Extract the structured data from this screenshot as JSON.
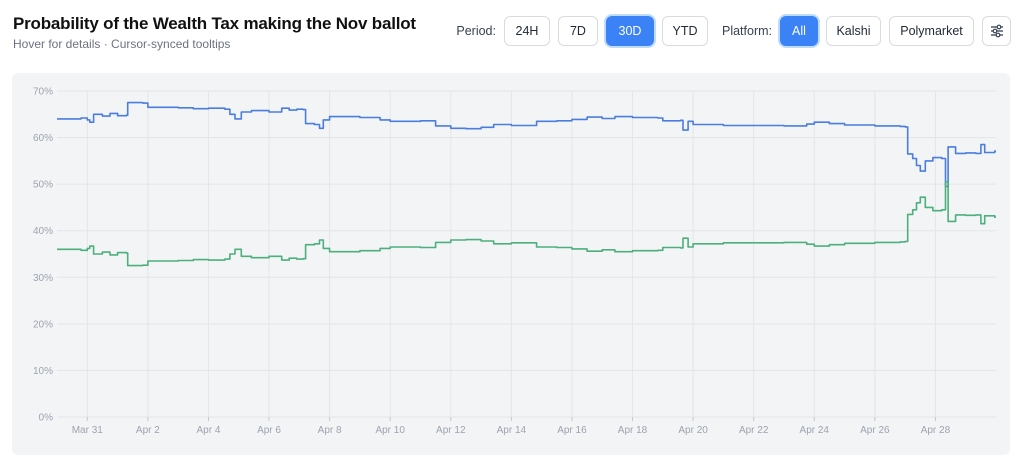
{
  "header": {
    "title": "Probability of the Wealth Tax making the Nov ballot",
    "subtitle": "Hover for details · Cursor-synced tooltips"
  },
  "controls": {
    "period_label": "Period:",
    "periods": [
      "24H",
      "7D",
      "30D",
      "YTD"
    ],
    "active_period": "30D",
    "platform_label": "Platform:",
    "platforms": [
      "All",
      "Kalshi",
      "Polymarket"
    ],
    "active_platform": "All",
    "settings_icon": "sliders-icon"
  },
  "colors": {
    "accent": "#3b82f6",
    "series_yes": "#4a7de0",
    "series_no": "#4caf7d"
  },
  "chart_data": {
    "type": "line",
    "title": "",
    "xlabel": "",
    "ylabel": "",
    "ylim": [
      0,
      70
    ],
    "yticks": [
      "0%",
      "10%",
      "20%",
      "30%",
      "40%",
      "50%",
      "60%",
      "70%"
    ],
    "xlim": [
      "Mar 30",
      "Apr 29"
    ],
    "xticks": [
      {
        "date": "Mar 31",
        "label": "Mar 31"
      },
      {
        "date": "Apr 2",
        "label": "Apr 2"
      },
      {
        "date": "Apr 4",
        "label": "Apr 4"
      },
      {
        "date": "Apr 6",
        "label": "Apr 6"
      },
      {
        "date": "Apr 8",
        "label": "Apr 8"
      },
      {
        "date": "Apr 10",
        "label": "Apr 10"
      },
      {
        "date": "Apr 12",
        "label": "Apr 12"
      },
      {
        "date": "Apr 14",
        "label": "Apr 14"
      },
      {
        "date": "Apr 16",
        "label": "Apr 16"
      },
      {
        "date": "Apr 18",
        "label": "Apr 18"
      },
      {
        "date": "Apr 20",
        "label": "Apr 20"
      },
      {
        "date": "Apr 22",
        "label": "Apr 22"
      },
      {
        "date": "Apr 24",
        "label": "Apr 24"
      },
      {
        "date": "Apr 26",
        "label": "Apr 26"
      },
      {
        "date": "Apr 28",
        "label": "Apr 28"
      }
    ],
    "grid": true,
    "legend": "none",
    "series": [
      {
        "color": "#4a7de0",
        "points": [
          [
            "Mar 30 00:00",
            64.0
          ],
          [
            "Mar 30 19:00",
            64.2
          ],
          [
            "Mar 31 00:00",
            63.8
          ],
          [
            "Mar 31 02:00",
            63.3
          ],
          [
            "Mar 31 05:00",
            65.0
          ],
          [
            "Mar 31 12:00",
            64.6
          ],
          [
            "Mar 31 18:00",
            65.2
          ],
          [
            "Apr 1 00:00",
            64.7
          ],
          [
            "Apr 1 07:00",
            64.8
          ],
          [
            "Apr 1 08:00",
            67.5
          ],
          [
            "Apr 1 20:00",
            67.4
          ],
          [
            "Apr 2 00:00",
            66.5
          ],
          [
            "Apr 3 00:00",
            66.4
          ],
          [
            "Apr 3 12:00",
            66.2
          ],
          [
            "Apr 4 00:00",
            66.3
          ],
          [
            "Apr 4 13:00",
            66.1
          ],
          [
            "Apr 4 17:00",
            65.0
          ],
          [
            "Apr 4 21:00",
            64.0
          ],
          [
            "Apr 5 02:00",
            65.5
          ],
          [
            "Apr 5 10:00",
            65.8
          ],
          [
            "Apr 6 00:00",
            65.5
          ],
          [
            "Apr 6 10:00",
            66.3
          ],
          [
            "Apr 6 16:00",
            65.9
          ],
          [
            "Apr 6 22:00",
            66.1
          ],
          [
            "Apr 7 03:00",
            66.0
          ],
          [
            "Apr 7 05:00",
            63.0
          ],
          [
            "Apr 7 12:00",
            62.8
          ],
          [
            "Apr 7 16:00",
            62.0
          ],
          [
            "Apr 7 19:00",
            63.8
          ],
          [
            "Apr 8 00:00",
            64.5
          ],
          [
            "Apr 9 00:00",
            64.3
          ],
          [
            "Apr 9 16:00",
            63.8
          ],
          [
            "Apr 10 00:00",
            63.5
          ],
          [
            "Apr 11 00:00",
            63.6
          ],
          [
            "Apr 11 12:00",
            62.5
          ],
          [
            "Apr 12 00:00",
            62.0
          ],
          [
            "Apr 12 12:00",
            61.9
          ],
          [
            "Apr 13 00:00",
            62.2
          ],
          [
            "Apr 13 10:00",
            62.8
          ],
          [
            "Apr 14 00:00",
            62.6
          ],
          [
            "Apr 14 20:00",
            63.5
          ],
          [
            "Apr 15 12:00",
            63.6
          ],
          [
            "Apr 16 00:00",
            63.9
          ],
          [
            "Apr 16 12:00",
            64.4
          ],
          [
            "Apr 17 00:00",
            64.1
          ],
          [
            "Apr 17 10:00",
            64.5
          ],
          [
            "Apr 18 00:00",
            64.3
          ],
          [
            "Apr 18 20:00",
            64.2
          ],
          [
            "Apr 19 00:00",
            63.6
          ],
          [
            "Apr 19 14:00",
            63.7
          ],
          [
            "Apr 19 16:00",
            61.6
          ],
          [
            "Apr 19 20:00",
            63.5
          ],
          [
            "Apr 20 00:00",
            62.8
          ],
          [
            "Apr 21 00:00",
            62.6
          ],
          [
            "Apr 22 00:00",
            62.6
          ],
          [
            "Apr 23 00:00",
            62.5
          ],
          [
            "Apr 23 18:00",
            62.9
          ],
          [
            "Apr 24 00:00",
            63.3
          ],
          [
            "Apr 24 12:00",
            63.0
          ],
          [
            "Apr 25 00:00",
            62.7
          ],
          [
            "Apr 26 00:00",
            62.5
          ],
          [
            "Apr 26 20:00",
            62.4
          ],
          [
            "Apr 27 00:00",
            62.3
          ],
          [
            "Apr 27 02:00",
            56.5
          ],
          [
            "Apr 27 06:00",
            55.5
          ],
          [
            "Apr 27 09:00",
            54.0
          ],
          [
            "Apr 27 12:00",
            52.8
          ],
          [
            "Apr 27 16:00",
            55.0
          ],
          [
            "Apr 27 22:00",
            55.7
          ],
          [
            "Apr 28 05:00",
            55.5
          ],
          [
            "Apr 28 08:00",
            49.5
          ],
          [
            "Apr 28 10:00",
            58.0
          ],
          [
            "Apr 28 16:00",
            56.6
          ],
          [
            "Apr 29 00:00",
            56.7
          ],
          [
            "Apr 29 08:00",
            56.6
          ],
          [
            "Apr 29 12:00",
            58.5
          ],
          [
            "Apr 29 15:00",
            56.8
          ],
          [
            "Apr 29 23:00",
            57.1
          ]
        ]
      },
      {
        "color": "#4caf7d",
        "points": [
          [
            "Mar 30 00:00",
            36.0
          ],
          [
            "Mar 30 19:00",
            35.8
          ],
          [
            "Mar 31 00:00",
            36.2
          ],
          [
            "Mar 31 02:00",
            36.7
          ],
          [
            "Mar 31 05:00",
            35.0
          ],
          [
            "Mar 31 12:00",
            35.4
          ],
          [
            "Mar 31 18:00",
            34.8
          ],
          [
            "Apr 1 00:00",
            35.3
          ],
          [
            "Apr 1 07:00",
            35.2
          ],
          [
            "Apr 1 08:00",
            32.5
          ],
          [
            "Apr 1 20:00",
            32.6
          ],
          [
            "Apr 2 00:00",
            33.5
          ],
          [
            "Apr 3 00:00",
            33.6
          ],
          [
            "Apr 3 12:00",
            33.8
          ],
          [
            "Apr 4 00:00",
            33.7
          ],
          [
            "Apr 4 13:00",
            33.9
          ],
          [
            "Apr 4 17:00",
            35.0
          ],
          [
            "Apr 4 21:00",
            36.0
          ],
          [
            "Apr 5 02:00",
            34.5
          ],
          [
            "Apr 5 10:00",
            34.2
          ],
          [
            "Apr 6 00:00",
            34.5
          ],
          [
            "Apr 6 10:00",
            33.7
          ],
          [
            "Apr 6 16:00",
            34.1
          ],
          [
            "Apr 6 22:00",
            33.9
          ],
          [
            "Apr 7 03:00",
            34.0
          ],
          [
            "Apr 7 05:00",
            37.0
          ],
          [
            "Apr 7 12:00",
            37.2
          ],
          [
            "Apr 7 16:00",
            38.0
          ],
          [
            "Apr 7 19:00",
            36.2
          ],
          [
            "Apr 8 00:00",
            35.5
          ],
          [
            "Apr 9 00:00",
            35.7
          ],
          [
            "Apr 9 16:00",
            36.2
          ],
          [
            "Apr 10 00:00",
            36.5
          ],
          [
            "Apr 11 00:00",
            36.4
          ],
          [
            "Apr 11 12:00",
            37.5
          ],
          [
            "Apr 12 00:00",
            38.0
          ],
          [
            "Apr 12 12:00",
            38.1
          ],
          [
            "Apr 13 00:00",
            37.8
          ],
          [
            "Apr 13 10:00",
            37.2
          ],
          [
            "Apr 14 00:00",
            37.4
          ],
          [
            "Apr 14 20:00",
            36.5
          ],
          [
            "Apr 15 12:00",
            36.4
          ],
          [
            "Apr 16 00:00",
            36.1
          ],
          [
            "Apr 16 12:00",
            35.6
          ],
          [
            "Apr 17 00:00",
            35.9
          ],
          [
            "Apr 17 10:00",
            35.5
          ],
          [
            "Apr 18 00:00",
            35.7
          ],
          [
            "Apr 18 20:00",
            35.8
          ],
          [
            "Apr 19 00:00",
            36.4
          ],
          [
            "Apr 19 14:00",
            36.3
          ],
          [
            "Apr 19 16:00",
            38.4
          ],
          [
            "Apr 19 20:00",
            36.5
          ],
          [
            "Apr 20 00:00",
            37.2
          ],
          [
            "Apr 21 00:00",
            37.4
          ],
          [
            "Apr 22 00:00",
            37.4
          ],
          [
            "Apr 23 00:00",
            37.5
          ],
          [
            "Apr 23 18:00",
            37.1
          ],
          [
            "Apr 24 00:00",
            36.7
          ],
          [
            "Apr 24 12:00",
            37.0
          ],
          [
            "Apr 25 00:00",
            37.3
          ],
          [
            "Apr 26 00:00",
            37.5
          ],
          [
            "Apr 26 20:00",
            37.6
          ],
          [
            "Apr 27 00:00",
            37.7
          ],
          [
            "Apr 27 02:00",
            43.5
          ],
          [
            "Apr 27 06:00",
            44.5
          ],
          [
            "Apr 27 09:00",
            46.0
          ],
          [
            "Apr 27 12:00",
            47.2
          ],
          [
            "Apr 27 16:00",
            45.0
          ],
          [
            "Apr 27 22:00",
            44.3
          ],
          [
            "Apr 28 05:00",
            44.5
          ],
          [
            "Apr 28 08:00",
            50.5
          ],
          [
            "Apr 28 10:00",
            42.0
          ],
          [
            "Apr 28 16:00",
            43.4
          ],
          [
            "Apr 29 00:00",
            43.3
          ],
          [
            "Apr 29 08:00",
            43.4
          ],
          [
            "Apr 29 12:00",
            41.5
          ],
          [
            "Apr 29 15:00",
            43.2
          ],
          [
            "Apr 29 23:00",
            42.9
          ]
        ]
      }
    ]
  }
}
